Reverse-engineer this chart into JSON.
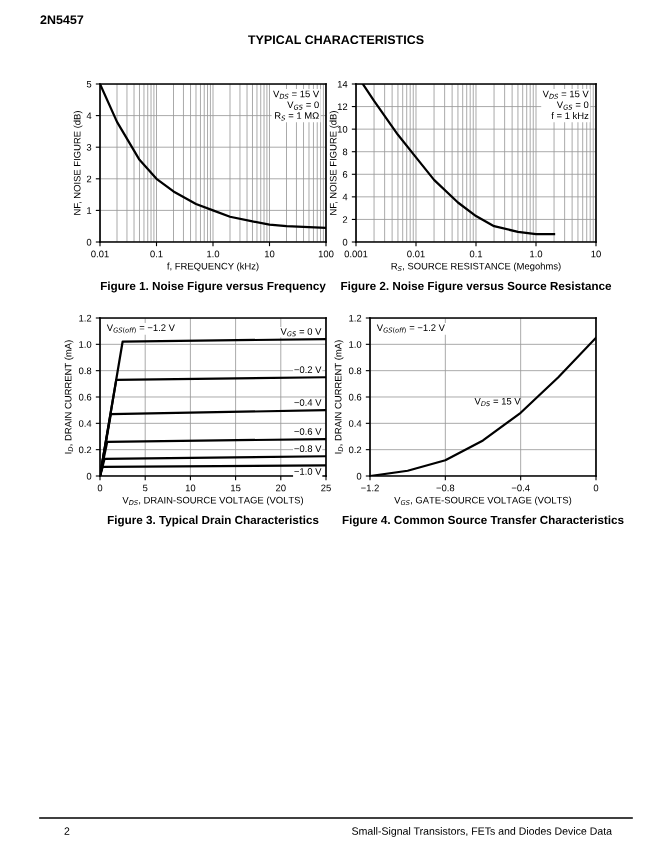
{
  "chart_data": [
    {
      "type": "line",
      "title": "Figure 1. Noise Figure versus Frequency",
      "xlabel": "f, FREQUENCY (kHz)",
      "ylabel": "NF, NOISE FIGURE (dB)",
      "log": "x",
      "grid": true,
      "xlim": [
        0.01,
        100
      ],
      "xticks": [
        0.01,
        0.1,
        {
          "value": 1,
          "label": "1.0"
        },
        10,
        100
      ],
      "ylim": [
        0,
        5
      ],
      "yticks": [
        0,
        1,
        2,
        3,
        4,
        5
      ],
      "annotations": [
        "V$_{DS}$ = 15 V",
        "V$_{GS}$ = 0",
        "R$_{S}$ = 1 MΩ"
      ],
      "series": [
        {
          "color": "#000000",
          "x": [
            0.01,
            0.02,
            0.05,
            0.1,
            0.2,
            0.5,
            1,
            2,
            5,
            10,
            20,
            50,
            100
          ],
          "values": [
            5,
            3.8,
            2.6,
            2.0,
            1.6,
            1.2,
            1.0,
            0.8,
            0.65,
            0.55,
            0.5,
            0.47,
            0.45
          ]
        }
      ]
    },
    {
      "type": "line",
      "title": "Figure 2. Noise Figure versus Source Resistance",
      "xlabel": "R$_{S}$, SOURCE RESISTANCE (Megohms)",
      "ylabel": "NF, NOISE FIGURE (dB)",
      "log": "x",
      "grid": true,
      "xlim": [
        0.001,
        10
      ],
      "xticks": [
        0.001,
        0.01,
        0.1,
        {
          "value": 1,
          "label": "1.0"
        },
        10
      ],
      "ylim": [
        0,
        14
      ],
      "yticks": [
        0,
        2,
        4,
        6,
        8,
        10,
        12,
        14
      ],
      "annotations": [
        "V$_{DS}$ = 15 V",
        "V$_{GS}$ = 0",
        "f = 1 kHz"
      ],
      "series": [
        {
          "color": "#000000",
          "x": [
            0.0013,
            0.002,
            0.005,
            0.01,
            0.02,
            0.05,
            0.1,
            0.2,
            0.5,
            1.0,
            2.0
          ],
          "values": [
            14,
            12.5,
            9.5,
            7.5,
            5.5,
            3.5,
            2.3,
            1.4,
            0.9,
            0.7,
            0.7
          ]
        }
      ]
    },
    {
      "type": "line",
      "title": "Figure 3. Typical Drain Characteristics",
      "xlabel": "V$_{DS}$, DRAIN-SOURCE VOLTAGE (VOLTS)",
      "ylabel": "I$_{D}$, DRAIN CURRENT (mA)",
      "grid": true,
      "xlim": [
        0,
        25
      ],
      "xticks": [
        0,
        5,
        10,
        15,
        20,
        25
      ],
      "ylim": [
        0,
        1.2
      ],
      "yticks": [
        0,
        0.2,
        0.4,
        0.6,
        0.8,
        {
          "value": 1,
          "label": "1.0"
        },
        1.2
      ],
      "annotations": [
        "V$_{GS(off)}$ = −1.2 V"
      ],
      "series": [
        {
          "name": "V$_{GS}$ = 0 V",
          "color": "#000000",
          "x": [
            0,
            2.5,
            25
          ],
          "values": [
            0,
            1.02,
            1.04
          ]
        },
        {
          "name": "−0.2 V",
          "color": "#000000",
          "x": [
            0,
            1.8,
            25
          ],
          "values": [
            0,
            0.73,
            0.75
          ]
        },
        {
          "name": "−0.4 V",
          "color": "#000000",
          "x": [
            0,
            1.2,
            25
          ],
          "values": [
            0,
            0.47,
            0.5
          ]
        },
        {
          "name": "−0.6 V",
          "color": "#000000",
          "x": [
            0,
            0.8,
            25
          ],
          "values": [
            0,
            0.26,
            0.28
          ]
        },
        {
          "name": "−0.8 V",
          "color": "#000000",
          "x": [
            0,
            0.5,
            25
          ],
          "values": [
            0,
            0.13,
            0.15
          ]
        },
        {
          "name": "−1.0 V",
          "color": "#000000",
          "x": [
            0,
            0.3,
            25
          ],
          "values": [
            0,
            0.07,
            0.08
          ]
        }
      ]
    },
    {
      "type": "line",
      "title": "Figure 4. Common Source Transfer Characteristics",
      "xlabel": "V$_{GS}$, GATE-SOURCE VOLTAGE (VOLTS)",
      "ylabel": "I$_{D}$, DRAIN CURRENT (mA)",
      "grid": true,
      "xlim": [
        -1.2,
        0
      ],
      "xticks": [
        {
          "value": -1.2,
          "label": "−1.2"
        },
        {
          "value": -0.8,
          "label": "−0.8"
        },
        {
          "value": -0.4,
          "label": "−0.4"
        },
        0
      ],
      "ylim": [
        0,
        1.2
      ],
      "yticks": [
        0,
        0.2,
        0.4,
        0.6,
        0.8,
        {
          "value": 1,
          "label": "1.0"
        },
        1.2
      ],
      "annotations": [
        "V$_{GS(off)}$ = −1.2 V"
      ],
      "series": [
        {
          "name": "V$_{DS}$ = 15 V",
          "color": "#000000",
          "x": [
            -1.2,
            -1.0,
            -0.8,
            -0.6,
            -0.4,
            -0.2,
            0
          ],
          "values": [
            0,
            0.04,
            0.12,
            0.27,
            0.48,
            0.75,
            1.05
          ]
        }
      ]
    },
    {
      "type": "other",
      "title": "TYPICAL CHARACTERISTICS",
      "annotations": [
        "2N5457",
        "2",
        "Small-Signal Transistors, FETs and Diodes Device Data"
      ]
    }
  ]
}
